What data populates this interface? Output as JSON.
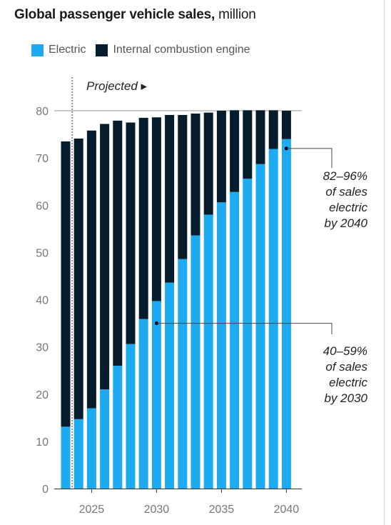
{
  "title": {
    "main": "Global passenger vehicle sales,",
    "unit": "million"
  },
  "legend": [
    {
      "label": "Electric",
      "color": "#1eaaf0"
    },
    {
      "label": "Internal combustion engine",
      "color": "#051c2c"
    }
  ],
  "projected_label": "Projected ▸",
  "annotations": [
    {
      "lines": [
        "82–96%",
        "of sales",
        "electric",
        "by 2040"
      ],
      "year": 2040,
      "value": 72
    },
    {
      "lines": [
        "40–59%",
        "of sales",
        "electric",
        "by 2030"
      ],
      "year": 2030,
      "value": 35
    }
  ],
  "chart_data": {
    "type": "bar",
    "stacked": true,
    "x": [
      2023,
      2024,
      2025,
      2026,
      2027,
      2028,
      2029,
      2030,
      2031,
      2032,
      2033,
      2034,
      2035,
      2036,
      2037,
      2038,
      2039,
      2040
    ],
    "series": [
      {
        "name": "Electric",
        "color": "#1eaaf0",
        "values": [
          13.1,
          14.7,
          17.0,
          21.0,
          26.0,
          30.6,
          35.9,
          39.7,
          43.6,
          48.6,
          53.6,
          58.0,
          60.6,
          62.8,
          65.6,
          68.7,
          71.9,
          74.0
        ]
      },
      {
        "name": "Internal combustion engine",
        "color": "#051c2c",
        "values": [
          60.4,
          59.4,
          58.8,
          56.2,
          51.9,
          46.9,
          42.6,
          38.9,
          35.5,
          30.5,
          25.8,
          21.6,
          19.4,
          17.3,
          14.5,
          11.4,
          8.2,
          6.0
        ]
      }
    ],
    "totals": [
      73.5,
      74.1,
      75.8,
      77.2,
      77.9,
      77.5,
      78.5,
      78.6,
      79.1,
      79.1,
      79.4,
      79.6,
      80.0,
      80.1,
      80.1,
      80.1,
      80.1,
      80.0
    ],
    "projection_start": 2023.5,
    "y_ticks": [
      0,
      10,
      20,
      30,
      40,
      50,
      60,
      70,
      80
    ],
    "x_ticks": [
      2025,
      2030,
      2035,
      2040
    ],
    "ylim": [
      0,
      80
    ],
    "grid": false,
    "legend_position": "top-left"
  }
}
